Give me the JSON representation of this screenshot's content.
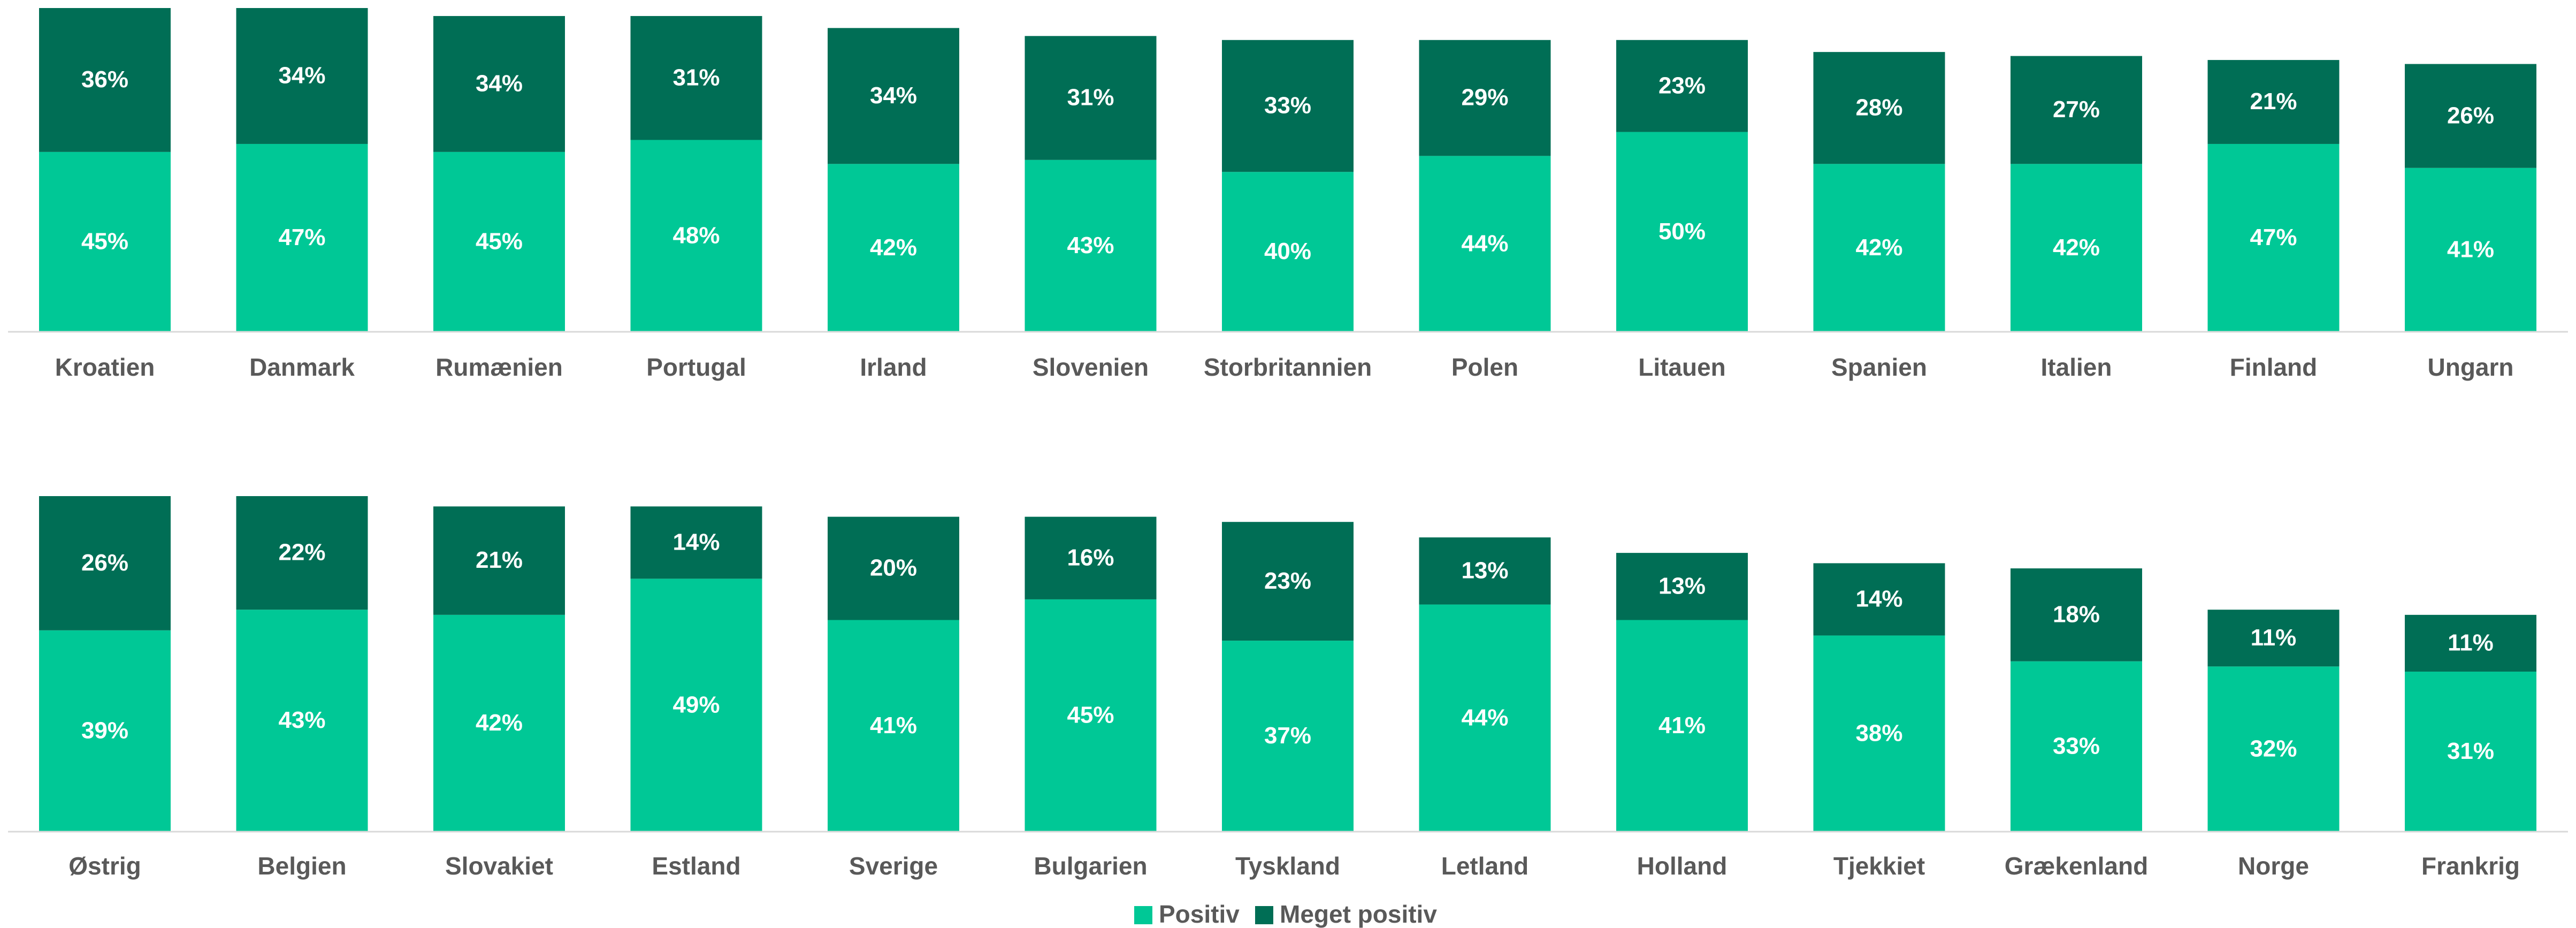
{
  "chart_data": [
    {
      "type": "stacked-bar",
      "categories": [
        "Kroatien",
        "Danmark",
        "Rumænien",
        "Portugal",
        "Irland",
        "Slovenien",
        "Storbritannien",
        "Polen",
        "Litauen",
        "Spanien",
        "Italien",
        "Finland",
        "Ungarn"
      ],
      "series": [
        {
          "color": "#00c896",
          "values": [
            45,
            47,
            45,
            48,
            42,
            43,
            40,
            44,
            50,
            42,
            42,
            47,
            41
          ],
          "value_labels": [
            "45%",
            "47%",
            "45%",
            "48%",
            "42%",
            "43%",
            "40%",
            "44%",
            "50%",
            "42%",
            "42%",
            "47%",
            "41%"
          ]
        },
        {
          "color": "#006e55",
          "values": [
            36,
            34,
            34,
            31,
            34,
            31,
            33,
            29,
            23,
            28,
            27,
            21,
            26
          ],
          "value_labels": [
            "36%",
            "34%",
            "34%",
            "31%",
            "34%",
            "31%",
            "33%",
            "29%",
            "23%",
            "28%",
            "27%",
            "21%",
            "26%"
          ]
        }
      ],
      "ylim": [
        0,
        81
      ]
    },
    {
      "type": "stacked-bar",
      "categories": [
        "Østrig",
        "Belgien",
        "Slovakiet",
        "Estland",
        "Sverige",
        "Bulgarien",
        "Tyskland",
        "Letland",
        "Holland",
        "Tjekkiet",
        "Grækenland",
        "Norge",
        "Frankrig"
      ],
      "series": [
        {
          "color": "#00c896",
          "values": [
            39,
            43,
            42,
            49,
            41,
            45,
            37,
            44,
            41,
            38,
            33,
            32,
            31
          ],
          "value_labels": [
            "39%",
            "43%",
            "42%",
            "49%",
            "41%",
            "45%",
            "37%",
            "44%",
            "41%",
            "38%",
            "33%",
            "32%",
            "31%"
          ]
        },
        {
          "color": "#006e55",
          "values": [
            26,
            22,
            21,
            14,
            20,
            16,
            23,
            13,
            13,
            14,
            18,
            11,
            11
          ],
          "value_labels": [
            "26%",
            "22%",
            "21%",
            "14%",
            "20%",
            "16%",
            "23%",
            "13%",
            "13%",
            "14%",
            "18%",
            "11%",
            "11%"
          ]
        }
      ],
      "ylim": [
        0,
        65
      ]
    }
  ],
  "legend": {
    "position": "bottom",
    "items": [
      {
        "name": "Positiv",
        "color": "#00c896"
      },
      {
        "name": "Meget positiv",
        "color": "#006e55"
      }
    ]
  }
}
